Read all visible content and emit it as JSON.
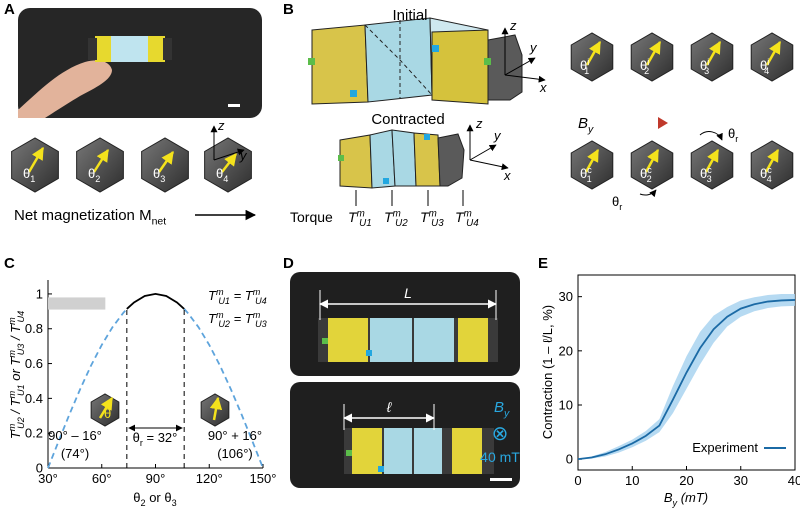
{
  "panels": {
    "a": {
      "label": "A",
      "angles": [
        [
          {
            "text": "θ",
            "sub": "1"
          }
        ],
        [
          {
            "text": "θ",
            "sub": "2"
          }
        ],
        [
          {
            "text": "θ",
            "sub": "3"
          }
        ],
        [
          {
            "text": "θ",
            "sub": "4"
          }
        ]
      ],
      "axes": [
        "z",
        "y"
      ],
      "magnetization": [
        {
          "text": "Net magnetization "
        },
        {
          "text": "M",
          "sub": "net"
        }
      ]
    },
    "b": {
      "label": "B",
      "initial": "Initial",
      "contracted": "Contracted",
      "axes_initial": [
        "z",
        "y",
        "x"
      ],
      "axes_contracted": [
        "z",
        "y",
        "x"
      ],
      "torque": "Torque",
      "torques": [
        [
          {
            "text": "T",
            "sup": "m",
            "sub": "U1"
          }
        ],
        [
          {
            "text": "T",
            "sup": "m",
            "sub": "U2"
          }
        ],
        [
          {
            "text": "T",
            "sup": "m",
            "sub": "U3"
          }
        ],
        [
          {
            "text": "T",
            "sup": "m",
            "sub": "U4"
          }
        ]
      ],
      "angles_initial": [
        [
          {
            "text": "θ",
            "sup": "i",
            "sub": "1"
          }
        ],
        [
          {
            "text": "θ",
            "sup": "i",
            "sub": "2"
          }
        ],
        [
          {
            "text": "θ",
            "sup": "i",
            "sub": "3"
          }
        ],
        [
          {
            "text": "θ",
            "sup": "i",
            "sub": "4"
          }
        ]
      ],
      "field": [
        {
          "text": "B",
          "sub": "y"
        }
      ],
      "theta_r": [
        [
          {
            "text": "θ",
            "sub": "r"
          }
        ],
        [
          {
            "text": "θ",
            "sub": "r"
          }
        ]
      ],
      "angles_contracted": [
        [
          {
            "text": "θ",
            "sup": "c",
            "sub": "1"
          }
        ],
        [
          {
            "text": "θ",
            "sup": "c",
            "sub": "2"
          }
        ],
        [
          {
            "text": "θ",
            "sup": "c",
            "sub": "3"
          }
        ],
        [
          {
            "text": "θ",
            "sup": "c",
            "sub": "4"
          }
        ]
      ]
    },
    "c": {
      "label": "C"
    },
    "d": {
      "label": "D",
      "top_length": "L",
      "bottom_length": "ℓ",
      "field": [
        {
          "text": "B",
          "sub": "y"
        }
      ],
      "field_symbol": "⊗",
      "field_value": "40 mT"
    },
    "e": {
      "label": "E"
    }
  },
  "chart_data": [
    {
      "type": "line",
      "x": [
        30,
        36,
        42,
        48,
        54,
        60,
        66,
        72,
        74,
        78,
        84,
        90,
        96,
        102,
        106,
        108,
        114,
        120,
        126,
        132,
        138,
        144,
        150
      ],
      "series": [
        {
          "color": "#5ea4dc",
          "dashed": true,
          "values": [
            0,
            0.156,
            0.309,
            0.454,
            0.588,
            0.707,
            0.809,
            0.891,
            0.914,
            null,
            null,
            null,
            null,
            null,
            0.914,
            0.891,
            0.809,
            0.707,
            0.588,
            0.454,
            0.309,
            0.156,
            0
          ]
        },
        {
          "color": "#000000",
          "dashed": false,
          "values": [
            null,
            null,
            null,
            null,
            null,
            null,
            null,
            null,
            0.914,
            0.951,
            0.988,
            1,
            0.988,
            0.951,
            0.914,
            null,
            null,
            null,
            null,
            null,
            null,
            null,
            null
          ]
        }
      ],
      "xlim": [
        30,
        150
      ],
      "ylim": [
        0,
        1.08
      ],
      "xticks": [
        {
          "value": 30,
          "label": "30°"
        },
        {
          "value": 60,
          "label": "60°"
        },
        {
          "value": 90,
          "label": "90°"
        },
        {
          "value": 120,
          "label": "120°"
        },
        {
          "value": 150,
          "label": "150°"
        }
      ],
      "yticks": [
        0,
        0.2,
        0.4,
        0.6,
        0.8,
        1
      ],
      "shade": {
        "x": [
          30,
          62
        ],
        "y": [
          0.91,
          0.98
        ]
      },
      "vlines": [
        74,
        106
      ],
      "x_label": [
        {
          "text": "θ",
          "sub": "2"
        },
        {
          "text": " or "
        },
        {
          "text": "θ",
          "sub": "3"
        }
      ],
      "y_label": [
        {
          "text": "T",
          "sup": "m",
          "sub": "U2"
        },
        {
          "text": " / "
        },
        {
          "text": "T",
          "sup": "m",
          "sub": "U1"
        },
        {
          "text": " or "
        },
        {
          "text": "T",
          "sup": "m",
          "sub": "U3"
        },
        {
          "text": " / "
        },
        {
          "text": "T",
          "sup": "m",
          "sub": "U4"
        }
      ],
      "equations": [
        [
          {
            "text": "T",
            "sup": "m",
            "sub": "U1"
          },
          {
            "text": " = "
          },
          {
            "text": "T",
            "sup": "m",
            "sub": "U4"
          }
        ],
        [
          {
            "text": "T",
            "sup": "m",
            "sub": "U2"
          },
          {
            "text": " = "
          },
          {
            "text": "T",
            "sup": "m",
            "sub": "U3"
          }
        ]
      ],
      "annotations": [
        "90° – 16°",
        "(74°)",
        [
          {
            "text": "θ",
            "sub": "r"
          },
          {
            "text": " = 32°"
          }
        ],
        "90° + 16°",
        "(106°)"
      ],
      "inset_symbol": "θ",
      "grid": false
    },
    {
      "type": "line",
      "x": [
        0,
        2.5,
        5,
        7.5,
        10,
        12.5,
        15,
        17.5,
        20,
        22.5,
        25,
        27.5,
        30,
        32.5,
        35,
        37.5,
        40
      ],
      "series": [
        {
          "name": "Experiment",
          "color": "#1b6aa5",
          "values": [
            0,
            0.3,
            0.9,
            1.8,
            2.9,
            4.3,
            6.2,
            11,
            16,
            20.5,
            24,
            26.3,
            27.8,
            28.6,
            29.1,
            29.3,
            29.4
          ],
          "lower": [
            0,
            0.1,
            0.5,
            1.2,
            2.2,
            3.4,
            5,
            8.5,
            13,
            17.5,
            21.5,
            24.5,
            26.3,
            27.3,
            27.9,
            28.2,
            28.3
          ],
          "upper": [
            0,
            0.5,
            1.3,
            2.4,
            3.6,
            5.2,
            7.4,
            13.5,
            19,
            23.5,
            26.5,
            28.1,
            29.3,
            29.9,
            30.3,
            30.5,
            30.5
          ],
          "band_color": "#a9d3f0"
        }
      ],
      "xlim": [
        0,
        40
      ],
      "ylim": [
        -2,
        34
      ],
      "xticks": [
        0,
        10,
        20,
        30,
        40
      ],
      "yticks": [
        0,
        10,
        20,
        30
      ],
      "x_label": [
        {
          "text": "B",
          "sub": "y"
        },
        {
          "text": " (mT)"
        }
      ],
      "y_label": "Contraction (1 – ℓ/L, %)",
      "legend": "lower right",
      "grid": false
    }
  ]
}
